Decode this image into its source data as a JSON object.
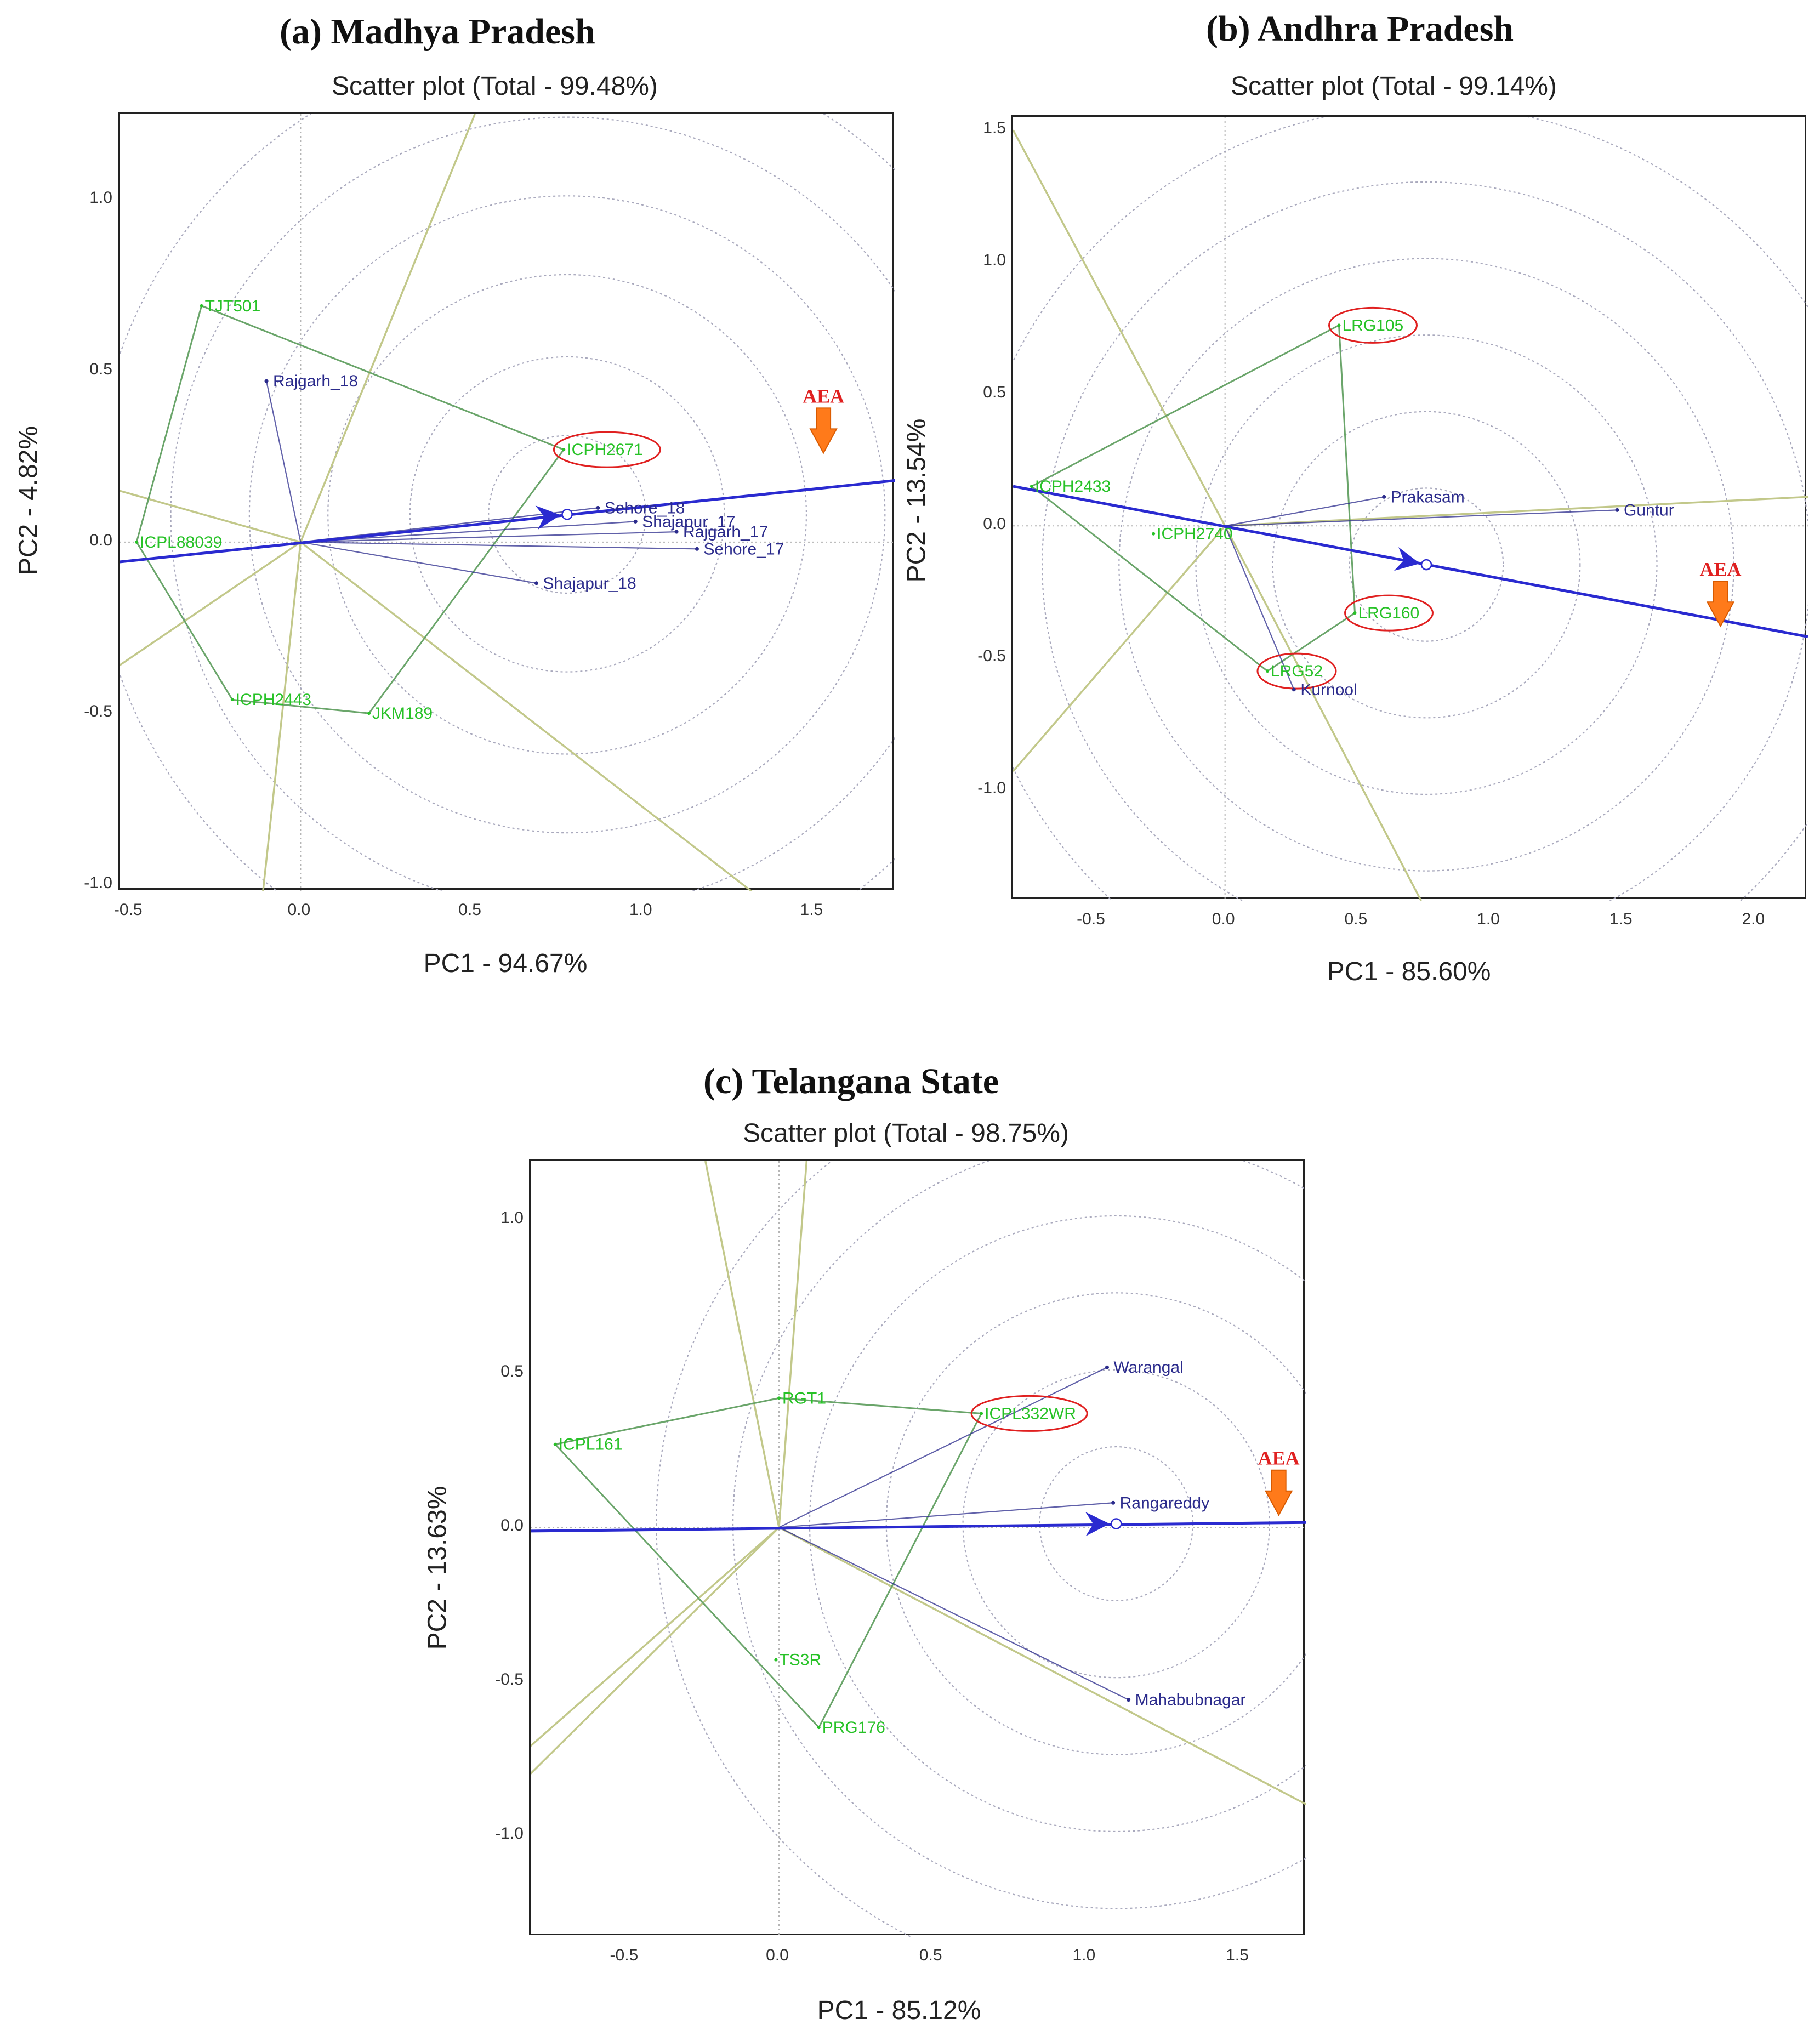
{
  "colors": {
    "genotype": "#27c227",
    "genotype_line": "#6aa56a",
    "environment": "#2b2b8c",
    "aea": "#2a2ad0",
    "sector": "#c2c88a",
    "circle": "#a9a9bd",
    "highlight": "#e02020",
    "arrow_fill": "#ff7a1a",
    "aea_label": "#e02020"
  },
  "chart_data": [
    {
      "type": "scatter",
      "panel_label": "(a)  Madhya Pradesh",
      "title": "Scatter plot (Total - 99.48%)",
      "xlabel": "PC1 - 94.67%",
      "ylabel": "PC2 - 4.82%",
      "xlim": [
        -0.53,
        1.74
      ],
      "ylim": [
        -1.02,
        1.25
      ],
      "xticks": [
        -0.5,
        0.0,
        0.5,
        1.0,
        1.5
      ],
      "xtick_labels": [
        "-0.5",
        "0.0",
        "0.5",
        "1.0",
        "1.5"
      ],
      "yticks": [
        -1.0,
        -0.5,
        0.0,
        0.5,
        1.0
      ],
      "ytick_labels": [
        "-1.0",
        "-0.5",
        "0.0",
        "0.5",
        "1.0"
      ],
      "circle_radii": [
        0.23,
        0.46,
        0.7,
        0.93,
        1.16,
        1.39
      ],
      "genotypes": [
        {
          "label": "TJT501",
          "x": -0.29,
          "y": 0.69,
          "highlight": false
        },
        {
          "label": "ICPH2671",
          "x": 0.77,
          "y": 0.27,
          "highlight": true
        },
        {
          "label": "ICPL88039",
          "x": -0.48,
          "y": 0.0,
          "highlight": false
        },
        {
          "label": "ICPH2443",
          "x": -0.2,
          "y": -0.46,
          "highlight": false
        },
        {
          "label": "JKM189",
          "x": 0.2,
          "y": -0.5,
          "highlight": false
        }
      ],
      "hull_order": [
        "TJT501",
        "ICPH2671",
        "JKM189",
        "ICPH2443",
        "ICPL88039"
      ],
      "environments": [
        {
          "label": "Rajgarh_18",
          "x": -0.1,
          "y": 0.47
        },
        {
          "label": "Sehore_18",
          "x": 0.87,
          "y": 0.1
        },
        {
          "label": "Shajapur_17",
          "x": 0.98,
          "y": 0.06
        },
        {
          "label": "Rajgarh_17",
          "x": 1.1,
          "y": 0.03
        },
        {
          "label": "Sehore_17",
          "x": 1.16,
          "y": -0.02
        },
        {
          "label": "Shajapur_18",
          "x": 0.69,
          "y": -0.12
        }
      ],
      "aea_axis": {
        "x1": -0.53,
        "y1": -0.058,
        "x2": 1.74,
        "y2": 0.18
      },
      "aea_point": {
        "x": 0.78,
        "y": 0.081
      },
      "aea_marker": {
        "label": "AEA",
        "x": 1.53,
        "y": 0.26
      },
      "sector_lines": [
        [
          [
            0.0,
            0.0
          ],
          [
            0.51,
            1.25
          ]
        ],
        [
          [
            0.0,
            0.0
          ],
          [
            -0.53,
            0.15
          ]
        ],
        [
          [
            0.0,
            0.0
          ],
          [
            -0.53,
            -0.36
          ]
        ],
        [
          [
            0.0,
            0.0
          ],
          [
            -0.11,
            -1.02
          ]
        ],
        [
          [
            0.0,
            0.0
          ],
          [
            1.32,
            -1.02
          ]
        ]
      ]
    },
    {
      "type": "scatter",
      "panel_label": "(b)  Andhra Pradesh",
      "title": "Scatter plot (Total - 99.14%)",
      "xlabel": "PC1 - 85.60%",
      "ylabel": "PC2 - 13.54%",
      "xlim": [
        -0.8,
        2.2
      ],
      "ylim": [
        -1.42,
        1.55
      ],
      "xticks": [
        -0.5,
        0.0,
        0.5,
        1.0,
        1.5,
        2.0
      ],
      "xtick_labels": [
        "-0.5",
        "0.0",
        "0.5",
        "1.0",
        "1.5",
        "2.0"
      ],
      "yticks": [
        -1.0,
        -0.5,
        0.0,
        0.5,
        1.0,
        1.5
      ],
      "ytick_labels": [
        "-1.0",
        "-0.5",
        "0.0",
        "0.5",
        "1.0",
        "1.5"
      ],
      "circle_radii": [
        0.29,
        0.58,
        0.87,
        1.16,
        1.45,
        1.74
      ],
      "genotypes": [
        {
          "label": "LRG105",
          "x": 0.43,
          "y": 0.76,
          "highlight": true
        },
        {
          "label": "ICPH2433",
          "x": -0.73,
          "y": 0.15,
          "highlight": false
        },
        {
          "label": "ICPH2740",
          "x": -0.27,
          "y": -0.03,
          "highlight": false
        },
        {
          "label": "LRG160",
          "x": 0.49,
          "y": -0.33,
          "highlight": true
        },
        {
          "label": "LRG52",
          "x": 0.16,
          "y": -0.55,
          "highlight": true
        }
      ],
      "hull_order": [
        "LRG105",
        "LRG160",
        "LRG52",
        "ICPH2433"
      ],
      "environments": [
        {
          "label": "Prakasam",
          "x": 0.6,
          "y": 0.11
        },
        {
          "label": "Guntur",
          "x": 1.48,
          "y": 0.06
        },
        {
          "label": "Kurnool",
          "x": 0.26,
          "y": -0.62
        }
      ],
      "aea_axis": {
        "x1": -0.8,
        "y1": 0.15,
        "x2": 2.2,
        "y2": -0.42
      },
      "aea_point": {
        "x": 0.76,
        "y": -0.147
      },
      "aea_marker": {
        "label": "AEA",
        "x": 1.87,
        "y": -0.38
      },
      "sector_lines": [
        [
          [
            0.0,
            0.0
          ],
          [
            -0.8,
            1.5
          ]
        ],
        [
          [
            0.0,
            0.0
          ],
          [
            -0.8,
            -0.93
          ]
        ],
        [
          [
            0.0,
            0.0
          ],
          [
            0.74,
            -1.42
          ]
        ],
        [
          [
            0.0,
            0.0
          ],
          [
            2.2,
            0.11
          ]
        ]
      ]
    },
    {
      "type": "scatter",
      "panel_label": "(c)  Telangana State",
      "title": "Scatter plot (Total - 98.75%)",
      "xlabel": "PC1 - 85.12%",
      "ylabel": "PC2 - 13.63%",
      "xlim": [
        -0.81,
        1.72
      ],
      "ylim": [
        -1.33,
        1.19
      ],
      "xticks": [
        -0.5,
        0.0,
        0.5,
        1.0,
        1.5
      ],
      "xtick_labels": [
        "-0.5",
        "0.0",
        "0.5",
        "1.0",
        "1.5"
      ],
      "yticks": [
        -1.0,
        -0.5,
        0.0,
        0.5,
        1.0
      ],
      "ytick_labels": [
        "-1.0",
        "-0.5",
        "0.0",
        "0.5",
        "1.0"
      ],
      "circle_radii": [
        0.25,
        0.5,
        0.75,
        1.0,
        1.25,
        1.5
      ],
      "genotypes": [
        {
          "label": "RGT1",
          "x": 0.0,
          "y": 0.42,
          "highlight": false
        },
        {
          "label": "ICPL332WR",
          "x": 0.66,
          "y": 0.37,
          "highlight": true
        },
        {
          "label": "ICPL161",
          "x": -0.73,
          "y": 0.27,
          "highlight": false
        },
        {
          "label": "TS3R",
          "x": -0.01,
          "y": -0.43,
          "highlight": false
        },
        {
          "label": "PRG176",
          "x": 0.13,
          "y": -0.65,
          "highlight": false
        }
      ],
      "hull_order": [
        "ICPL161",
        "RGT1",
        "ICPL332WR",
        "PRG176"
      ],
      "environments": [
        {
          "label": "Warangal",
          "x": 1.07,
          "y": 0.52
        },
        {
          "label": "Rangareddy",
          "x": 1.09,
          "y": 0.08
        },
        {
          "label": "Mahabubnagar",
          "x": 1.14,
          "y": -0.56
        }
      ],
      "aea_axis": {
        "x1": -0.81,
        "y1": -0.012,
        "x2": 1.72,
        "y2": 0.016
      },
      "aea_point": {
        "x": 1.1,
        "y": 0.012
      },
      "aea_marker": {
        "label": "AEA",
        "x": 1.63,
        "y": 0.04
      },
      "sector_lines": [
        [
          [
            0.0,
            0.0
          ],
          [
            -0.24,
            1.19
          ]
        ],
        [
          [
            0.0,
            0.0
          ],
          [
            0.09,
            1.19
          ]
        ],
        [
          [
            0.0,
            0.0
          ],
          [
            -0.81,
            -0.8
          ]
        ],
        [
          [
            0.0,
            0.0
          ],
          [
            -0.81,
            -0.71
          ]
        ],
        [
          [
            0.0,
            0.0
          ],
          [
            1.72,
            -0.9
          ]
        ]
      ]
    }
  ]
}
